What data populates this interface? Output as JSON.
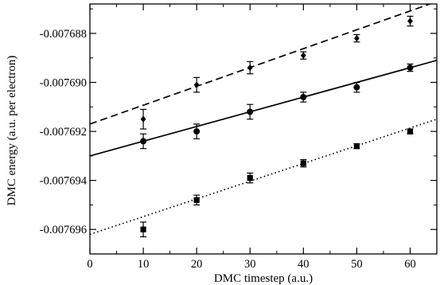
{
  "chart_data": {
    "type": "scatter",
    "title": "",
    "xlabel": "DMC timestep (a.u.)",
    "ylabel": "DMC energy (a.u. per electron)",
    "xlim": [
      0,
      65
    ],
    "ylim": [
      -0.007697,
      -0.0076868
    ],
    "xticks": [
      0,
      10,
      20,
      30,
      40,
      50,
      60
    ],
    "xtick_labels": [
      "0",
      "10",
      "20",
      "30",
      "40",
      "50",
      "60"
    ],
    "yticks": [
      -0.007688,
      -0.00769,
      -0.007692,
      -0.007694,
      -0.007696
    ],
    "ytick_labels": [
      "-0.007688",
      "-0.007690",
      "-0.007692",
      "-0.007694",
      "-0.007696"
    ],
    "grid": false,
    "legend": false,
    "series": [
      {
        "marker": "diamond",
        "line_style": "dashed",
        "color": "#000000",
        "x": [
          10,
          20,
          30,
          40,
          50,
          60
        ],
        "y": [
          -0.0076915,
          -0.0076901,
          -0.0076894,
          -0.0076889,
          -0.0076882,
          -0.0076875
        ],
        "yerr": [
          4e-07,
          3e-07,
          2.5e-07,
          1.5e-07,
          1.5e-07,
          2e-07
        ],
        "fit": {
          "x": [
            0,
            65
          ],
          "y": [
            -0.0076917,
            -0.0076867
          ]
        }
      },
      {
        "marker": "circle",
        "line_style": "solid",
        "color": "#000000",
        "x": [
          10,
          20,
          30,
          40,
          50,
          60
        ],
        "y": [
          -0.0076924,
          -0.007692,
          -0.0076912,
          -0.0076906,
          -0.0076902,
          -0.0076894
        ],
        "yerr": [
          3e-07,
          3e-07,
          3e-07,
          2e-07,
          2e-07,
          1.5e-07
        ],
        "fit": {
          "x": [
            0,
            65
          ],
          "y": [
            -0.007693,
            -0.0076891
          ]
        }
      },
      {
        "marker": "square",
        "line_style": "dotted",
        "color": "#000000",
        "x": [
          10,
          20,
          30,
          40,
          50,
          60
        ],
        "y": [
          -0.007696,
          -0.0076948,
          -0.0076939,
          -0.0076933,
          -0.0076926,
          -0.007692
        ],
        "yerr": [
          3e-07,
          2e-07,
          2e-07,
          1.5e-07,
          1e-07,
          1e-07
        ],
        "fit": {
          "x": [
            0,
            65
          ],
          "y": [
            -0.0076962,
            -0.0076915
          ]
        }
      }
    ]
  }
}
